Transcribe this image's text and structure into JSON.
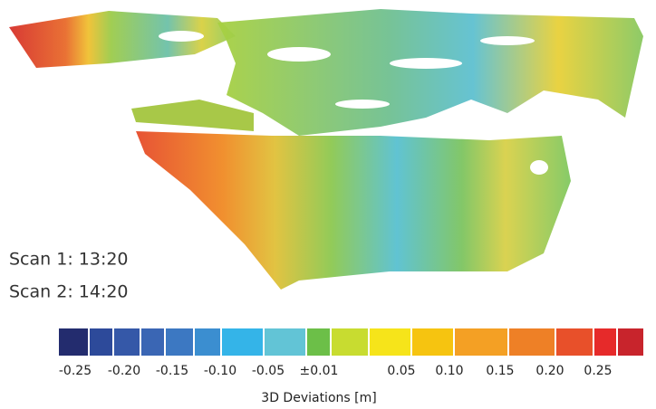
{
  "scan_labels": [
    "Scan 1: 13:20",
    "Scan 2: 14:20"
  ],
  "colorbar": {
    "labels": [
      "-0.25",
      "-0.20",
      "-0.15",
      "-0.10",
      "-0.05",
      "±0.01",
      "0.05",
      "0.10",
      "0.15",
      "0.20",
      "0.25"
    ],
    "title": "3D Deviations [m]"
  }
}
